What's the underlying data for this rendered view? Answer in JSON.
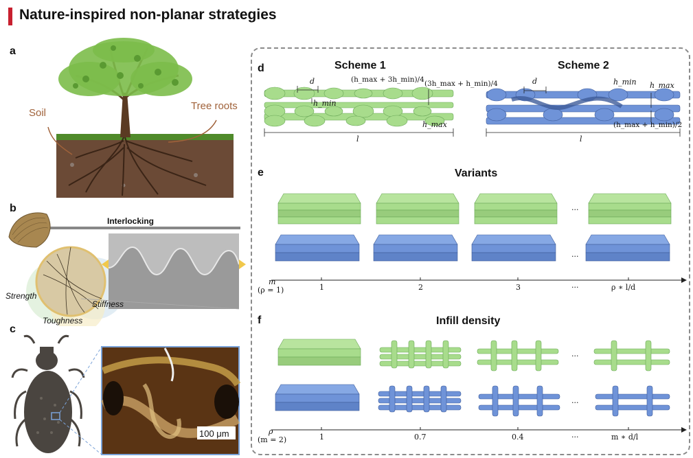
{
  "header": {
    "title": "Nature-inspired non-planar strategies"
  },
  "panels": {
    "a": "a",
    "b": "b",
    "c": "c",
    "d": "d",
    "e": "e",
    "f": "f"
  },
  "panel_a": {
    "soil_label": "Soil",
    "roots_label": "Tree roots"
  },
  "panel_b": {
    "interlocking_label": "Interlocking",
    "strength": "Strength",
    "stiffness": "Stiffness",
    "toughness": "Toughness"
  },
  "panel_c": {
    "scale_bar": "100 μm"
  },
  "panel_d": {
    "scheme1": {
      "title": "Scheme 1",
      "d_label": "d",
      "formula1": "(h_max + 3h_min)/4",
      "formula2": "(3h_max + h_min)/4",
      "hmin_label": "h_min",
      "hmax_label": "h_max",
      "l_label": "l"
    },
    "scheme2": {
      "title": "Scheme 2",
      "d_label": "d",
      "hmin_label": "h_min",
      "hmax_label": "h_max",
      "formula": "(h_max + h_min)/2",
      "l_label": "l"
    }
  },
  "panel_e": {
    "title": "Variants",
    "axis_var": "m",
    "axis_cond": "(ρ = 1)",
    "ticks": [
      "1",
      "2",
      "3",
      "···",
      "ρ ∗ l/d"
    ],
    "ellipsis": "···"
  },
  "panel_f": {
    "title": "Infill density",
    "axis_var": "ρ",
    "axis_cond": "(m = 2)",
    "ticks": [
      "1",
      "0.7",
      "0.4",
      "···",
      "m ∗ d/l"
    ],
    "ellipsis": "···"
  },
  "colors": {
    "accent": "#c8202f",
    "green": "#a8dc8c",
    "blue": "#6f93d8",
    "soil": "#6b4a36"
  }
}
